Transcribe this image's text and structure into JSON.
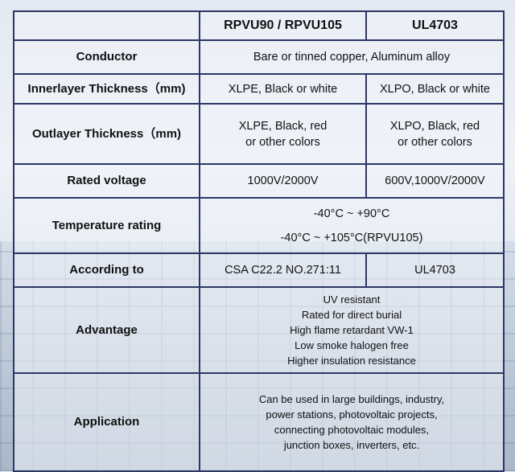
{
  "header": {
    "col1": "",
    "col2": "RPVU90 / RPVU105",
    "col3": "UL4703"
  },
  "rows": {
    "conductor": {
      "label": "Conductor",
      "value": "Bare or tinned copper, Aluminum alloy"
    },
    "innerlayer": {
      "label": "Innerlayer Thickness（mm)",
      "rpvu": "XLPE, Black or white",
      "ul": "XLPO, Black or white"
    },
    "outlayer": {
      "label": "Outlayer Thickness（mm)",
      "rpvu": [
        "XLPE, Black, red",
        "or other colors"
      ],
      "ul": [
        "XLPO, Black, red",
        "or other colors"
      ]
    },
    "voltage": {
      "label": "Rated voltage",
      "rpvu": "1000V/2000V",
      "ul": "600V,1000V/2000V"
    },
    "temperature": {
      "label": "Temperature rating",
      "lines": [
        "-40°C ~ +90°C",
        "-40°C ~ +105°C(RPVU105)"
      ]
    },
    "according": {
      "label": "According to",
      "rpvu": "CSA C22.2  NO.271:11",
      "ul": "UL4703"
    },
    "advantage": {
      "label": "Advantage",
      "lines": [
        "UV resistant",
        "Rated for direct burial",
        "High flame retardant VW-1",
        "Low smoke halogen free",
        "Higher insulation resistance"
      ]
    },
    "application": {
      "label": "Application",
      "lines": [
        "Can be used in large buildings, industry,",
        "power stations, photovoltaic projects,",
        "connecting photovoltaic modules,",
        "junction boxes, inverters, etc."
      ]
    }
  },
  "colors": {
    "border": "#2d3764"
  }
}
